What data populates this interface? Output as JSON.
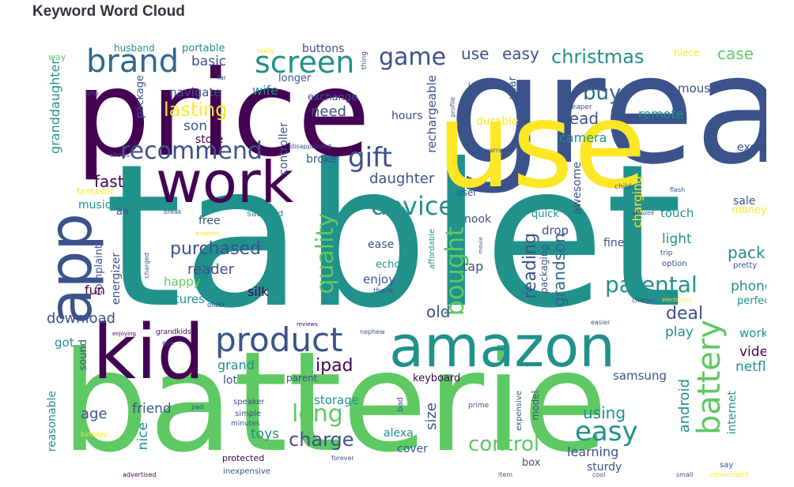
{
  "title": "Keyword Word Cloud",
  "palette": {
    "purple": "#440154",
    "indigo": "#3b528b",
    "teal": "#21918c",
    "green": "#5ec962",
    "yellow": "#fde725",
    "blue": "#31688e",
    "lime": "#addc30"
  },
  "words": [
    "tablet",
    "great",
    "price",
    "use",
    "batterie",
    "kid",
    "amazon",
    "app",
    "work",
    "brand",
    "product",
    "screen",
    "game",
    "recommend",
    "gift",
    "device",
    "lasting",
    "battery",
    "quality",
    "easy",
    "christmas",
    "case",
    "long",
    "bought",
    "parental",
    "buy",
    "charge",
    "control",
    "ipad",
    "deal",
    "grand",
    "grandson",
    "reading",
    "purchased",
    "reader",
    "using",
    "old",
    "download",
    "fast",
    "daughter",
    "son",
    "store",
    "need",
    "read",
    "remote",
    "camera",
    "basic",
    "navigate",
    "wife",
    "portable",
    "husband",
    "granddaughter",
    "package",
    "exchange",
    "longer",
    "buttons",
    "rechargeable",
    "hours",
    "durable",
    "year",
    "mouse",
    "niece",
    "time",
    "cheaper",
    "login",
    "profile",
    "warranty",
    "child",
    "flash",
    "money",
    "sale",
    "charging",
    "awesome",
    "touch",
    "light",
    "fine",
    "trip",
    "option",
    "pretty",
    "pack",
    "phone",
    "perfect",
    "video",
    "working",
    "netflix",
    "play",
    "android",
    "internet",
    "samsung",
    "keyboard",
    "storage",
    "size",
    "alexa",
    "cover",
    "toys",
    "friend",
    "nice",
    "age",
    "reasonable",
    "sound",
    "lot",
    "parent",
    "model",
    "learning",
    "sturdy",
    "box",
    "expensive",
    "prime",
    "bad",
    "speaker",
    "simple",
    "minutes",
    "inexpensive",
    "protected",
    "advertised",
    "forever",
    "birthday",
    "pad",
    "item",
    "cool",
    "small",
    "convenient",
    "say",
    "got",
    "eye",
    "grandkids",
    "enjoying",
    "nephew",
    "easier",
    "reviews",
    "older",
    "thank",
    "charger",
    "electronics",
    "energizer",
    "complaint",
    "features",
    "happy",
    "fun",
    "silk",
    "enjoy",
    "echo",
    "ease",
    "tap",
    "affordable",
    "packaging",
    "drop",
    "quick",
    "nook",
    "user",
    "free",
    "satisfied",
    "music",
    "aa",
    "fantastic",
    "charged",
    "wrapped",
    "break",
    "movie",
    "amazed",
    "controller",
    "broke",
    "disappointed",
    "shows",
    "grip",
    "far",
    "really",
    "thing",
    "way",
    "excellent"
  ]
}
